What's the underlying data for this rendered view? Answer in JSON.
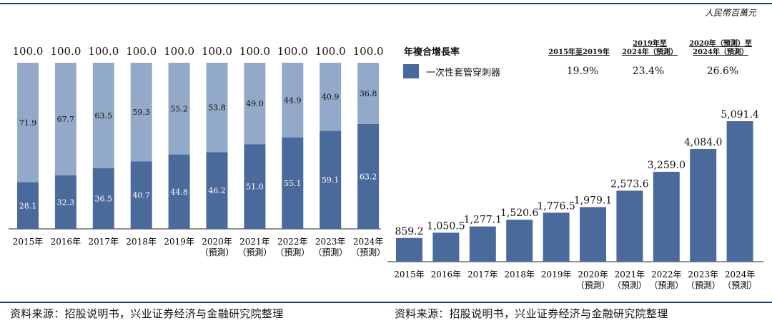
{
  "unit": "人民幣百萬元",
  "source_left": "资料来源：招股说明书，兴业证券经济与金融研究院整理",
  "source_right": "资料来源：招股说明书，兴业证券经济与金融研究院整理",
  "legend": {
    "title": "年複合增長率",
    "headers": [
      "2015年至2019年",
      "2019年至\n2024年（預測）",
      "2020年（預測）至\n2024年（預測）"
    ],
    "series_label": "一次性套管穿刺器",
    "cagr_values": [
      "19.9%",
      "23.4%",
      "26.6%"
    ]
  },
  "colors": {
    "dark": "#4a6a9c",
    "light": "#93a9c9",
    "rule": "#1f3f7a"
  },
  "chart_data": [
    {
      "type": "bar",
      "stacked": true,
      "categories": [
        "2015年",
        "2016年",
        "2017年",
        "2018年",
        "2019年",
        "2020年\n（預測）",
        "2021年\n（預測）",
        "2022年\n（預測）",
        "2023年\n（預測）",
        "2024年\n（預測）"
      ],
      "totals": [
        "100.0",
        "100.0",
        "100.0",
        "100.0",
        "100.0",
        "100.0",
        "100.0",
        "100.0",
        "100.0",
        "100.0"
      ],
      "series": [
        {
          "values": [
            28.1,
            32.3,
            36.5,
            40.7,
            44.8,
            46.2,
            51.0,
            55.1,
            59.1,
            63.2
          ],
          "color": "#4a6a9c"
        },
        {
          "values": [
            71.9,
            67.7,
            63.5,
            59.3,
            55.2,
            53.8,
            49.0,
            44.9,
            40.9,
            36.8
          ],
          "color": "#93a9c9"
        }
      ],
      "ylim": [
        0,
        100
      ]
    },
    {
      "type": "bar",
      "categories": [
        "2015年",
        "2016年",
        "2017年",
        "2018年",
        "2019年",
        "2020年\n（預測）",
        "2021年\n（預測）",
        "2022年\n（預測）",
        "2023年\n（預測）",
        "2024年\n（預測）"
      ],
      "values": [
        859.2,
        1050.5,
        1277.1,
        1520.6,
        1776.5,
        1979.1,
        2573.6,
        3259.0,
        4084.0,
        5091.4
      ],
      "labels": [
        "859.2",
        "1,050.5",
        "1,277.1",
        "1,520.6",
        "1,776.5",
        "1,979.1",
        "2,573.6",
        "3,259.0",
        "4,084.0",
        "5,091.4"
      ],
      "color": "#4a6a9c",
      "ylim": [
        0,
        5091.4
      ]
    }
  ]
}
